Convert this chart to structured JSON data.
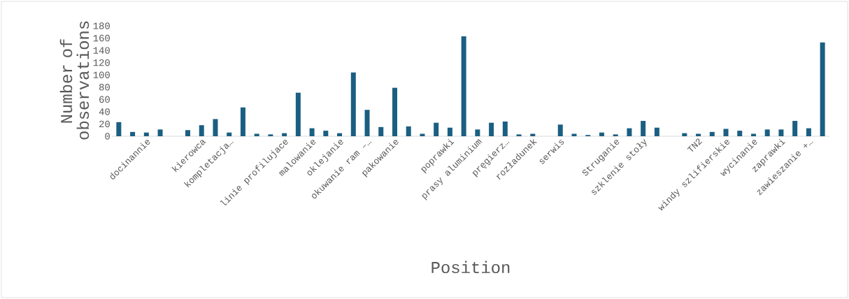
{
  "chart_data": {
    "type": "bar",
    "xlabel": "Position",
    "ylabel": "Number of observations",
    "categories": [
      null,
      null,
      "docinannie",
      null,
      null,
      null,
      "kierowca",
      null,
      "kompletacja…",
      null,
      null,
      null,
      "linie profilujace",
      null,
      "malowanie",
      null,
      "oklejanie",
      null,
      "okuwanie ram –…",
      null,
      "pakowanie",
      null,
      null,
      null,
      "poprawki",
      null,
      "prasy aluminium",
      null,
      "pręgierz…",
      null,
      "rozładunek",
      null,
      "serwis",
      null,
      null,
      null,
      "Struganie",
      null,
      "szklenie stoły",
      null,
      null,
      null,
      "TN2",
      null,
      "windy szlifierskie",
      null,
      "wycinanie",
      null,
      "zaprawki",
      null,
      "zawieszanie +…",
      null
    ],
    "values": [
      23,
      7,
      6,
      11,
      0,
      10,
      18,
      28,
      6,
      47,
      4,
      3,
      5,
      71,
      13,
      9,
      5,
      104,
      43,
      15,
      79,
      16,
      4,
      22,
      14,
      163,
      11,
      22,
      24,
      3,
      4,
      0,
      19,
      4,
      2,
      6,
      3,
      13,
      25,
      14,
      0,
      5,
      4,
      7,
      12,
      9,
      4,
      11,
      11,
      25,
      13,
      153
    ],
    "color": "#1a5f82",
    "ylim": [
      0,
      180
    ],
    "yticks": [
      0,
      20,
      40,
      60,
      80,
      100,
      120,
      140,
      160,
      180
    ]
  }
}
